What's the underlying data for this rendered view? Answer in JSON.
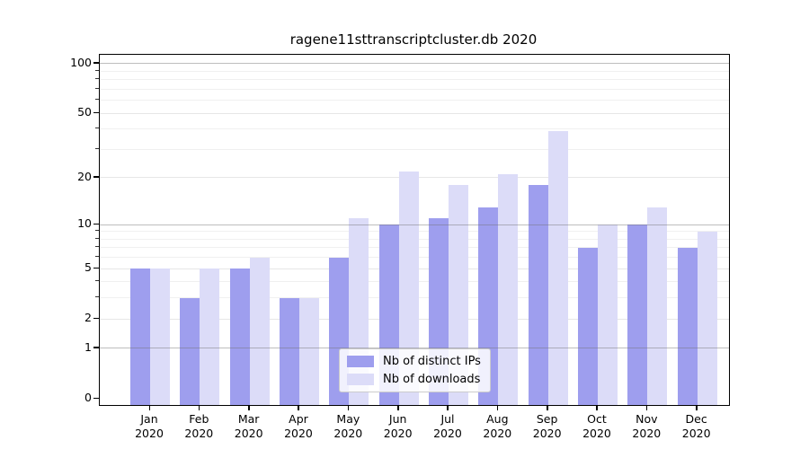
{
  "chart_data": {
    "type": "bar",
    "title": "ragene11sttranscriptcluster.db 2020",
    "categories": [
      "Jan",
      "Feb",
      "Mar",
      "Apr",
      "May",
      "Jun",
      "Jul",
      "Aug",
      "Sep",
      "Oct",
      "Nov",
      "Dec"
    ],
    "x_sub_label": "2020",
    "series": [
      {
        "name": "Nb of distinct IPs",
        "color": "#9e9eee",
        "values": [
          5,
          3,
          5,
          3,
          6,
          10,
          11,
          13,
          18,
          7,
          10,
          7
        ]
      },
      {
        "name": "Nb of downloads",
        "color": "#dcdcf8",
        "values": [
          5,
          5,
          6,
          3,
          11,
          22,
          18,
          21,
          39,
          10,
          13,
          9
        ]
      }
    ],
    "y_scale": "log1p",
    "y_ticks": [
      0,
      1,
      2,
      5,
      10,
      20,
      50,
      100
    ],
    "y_decade_lines": [
      1,
      10,
      100
    ],
    "y_minor_lines": [
      3,
      4,
      6,
      7,
      8,
      9,
      30,
      40,
      60,
      70,
      80,
      90
    ],
    "ylim": [
      0,
      113
    ],
    "grid": true,
    "legend_position": "bottom-center"
  }
}
